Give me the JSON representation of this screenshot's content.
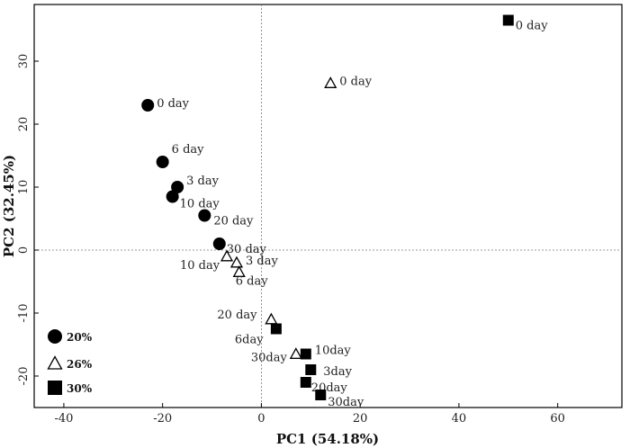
{
  "chart_data": {
    "type": "scatter",
    "xlabel": "PC1 (54.18%)",
    "ylabel": "PC2 (32.45%)",
    "xlim": [
      -46,
      73
    ],
    "ylim": [
      -25,
      39
    ],
    "xticks": [
      -40,
      -20,
      0,
      20,
      40,
      60
    ],
    "yticks": [
      -20,
      -10,
      0,
      10,
      20,
      30
    ],
    "reference_lines": {
      "x": 0,
      "y": 0,
      "style": "dotted"
    },
    "grid": false,
    "legend_position": "bottom-left",
    "series": [
      {
        "name": "20%",
        "marker": "circle",
        "color": "#000000",
        "points": [
          {
            "x": -23,
            "y": 23,
            "label": "0 day"
          },
          {
            "x": -20,
            "y": 14,
            "label": "6 day"
          },
          {
            "x": -17,
            "y": 10,
            "label": "3 day"
          },
          {
            "x": -18,
            "y": 8.5,
            "label": "10 day"
          },
          {
            "x": -11.5,
            "y": 5.5,
            "label": "20 day"
          },
          {
            "x": -8.5,
            "y": 1,
            "label": "30 day"
          }
        ]
      },
      {
        "name": "26%",
        "marker": "triangle-open",
        "color": "#000000",
        "points": [
          {
            "x": 14,
            "y": 26.5,
            "label": "0 day"
          },
          {
            "x": -7,
            "y": -1,
            "label": "10 day"
          },
          {
            "x": -5,
            "y": -2,
            "label": "3 day"
          },
          {
            "x": -4.5,
            "y": -3.5,
            "label": "6 day"
          },
          {
            "x": 2,
            "y": -11,
            "label": "20 day"
          },
          {
            "x": 7,
            "y": -16.5,
            "label": "30day"
          }
        ]
      },
      {
        "name": "30%",
        "marker": "square",
        "color": "#000000",
        "points": [
          {
            "x": 50,
            "y": 36.5,
            "label": "0 day"
          },
          {
            "x": 3,
            "y": -12.5,
            "label": "6day"
          },
          {
            "x": 9,
            "y": -16.5,
            "label": "10day"
          },
          {
            "x": 10,
            "y": -19,
            "label": "3day"
          },
          {
            "x": 9,
            "y": -21,
            "label": "20day"
          },
          {
            "x": 12,
            "y": -23,
            "label": "30day"
          }
        ]
      }
    ]
  }
}
